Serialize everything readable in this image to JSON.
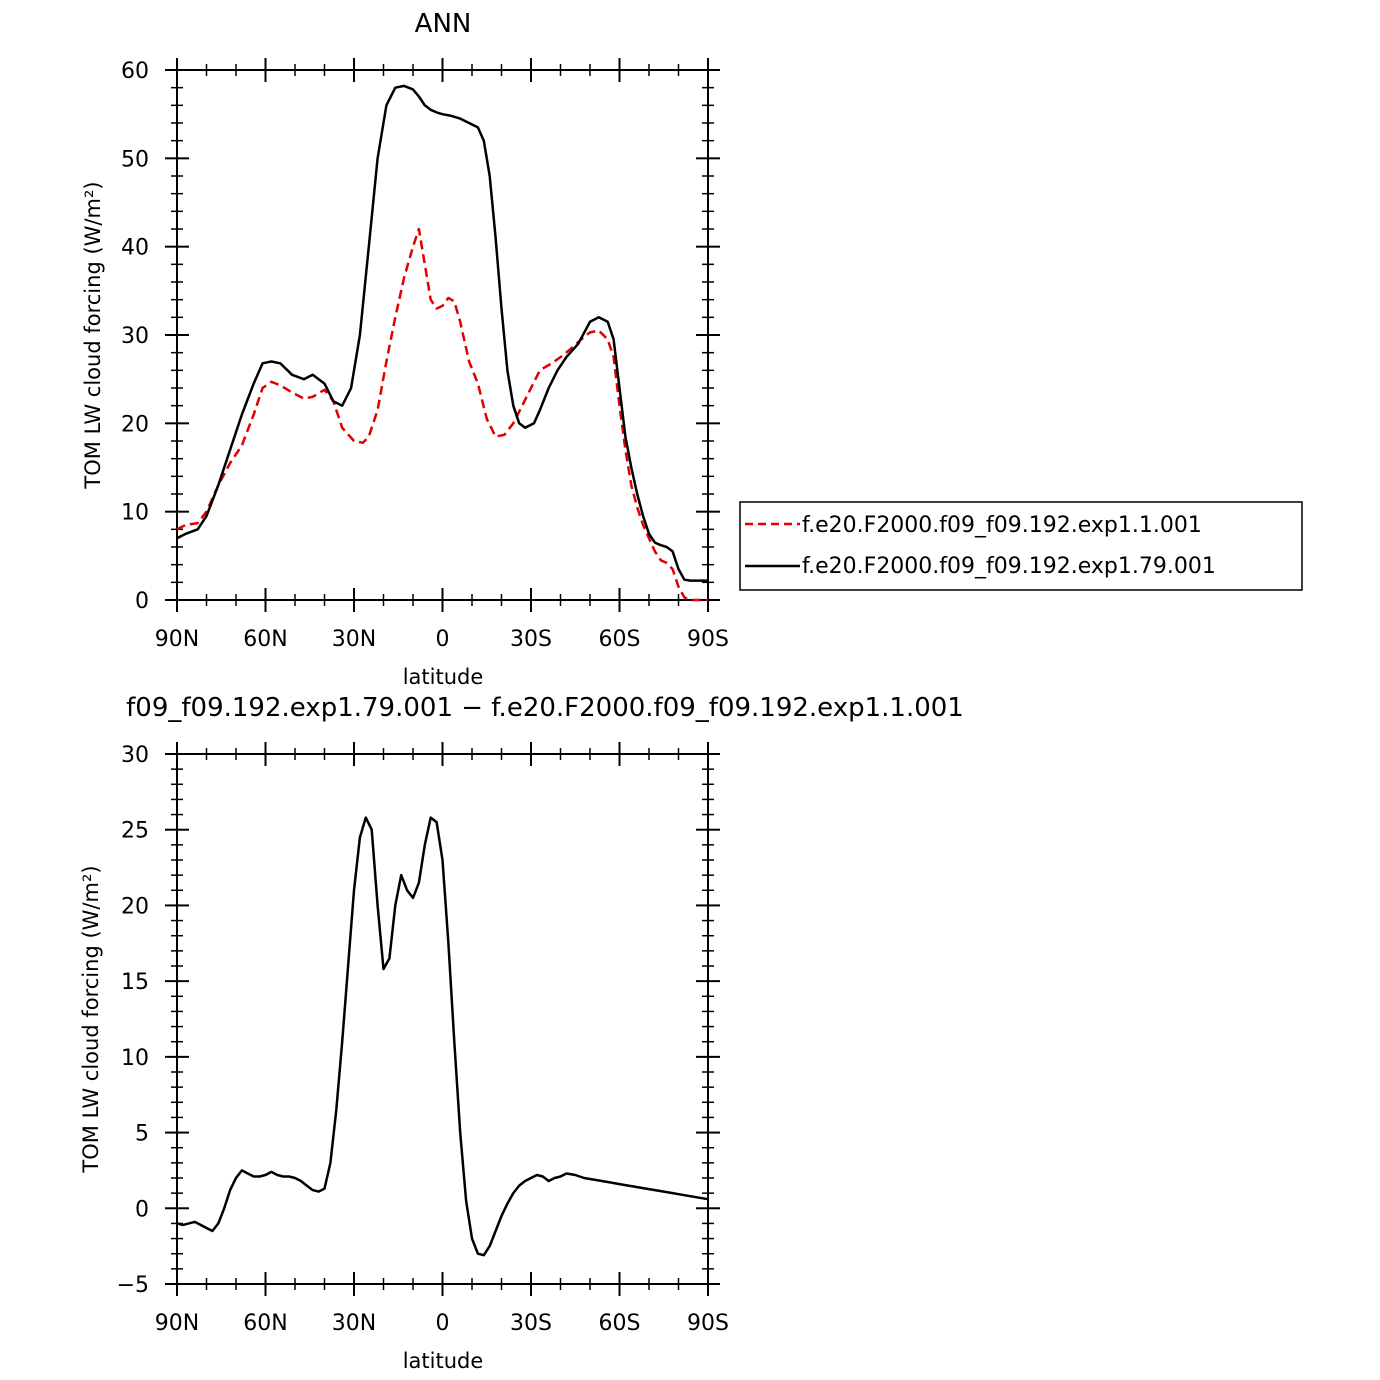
{
  "chart_data": [
    {
      "type": "line",
      "title": "ANN",
      "xlabel": "latitude",
      "ylabel": "TOM LW cloud forcing (W/m²)",
      "xlim": [
        90,
        -90
      ],
      "ylim": [
        0,
        60
      ],
      "x_tick_values": [
        90,
        60,
        30,
        0,
        -30,
        -60,
        -90
      ],
      "x_tick_labels": [
        "90N",
        "60N",
        "30N",
        "0",
        "30S",
        "60S",
        "90S"
      ],
      "y_ticks": [
        0,
        10,
        20,
        30,
        40,
        50,
        60
      ],
      "y_tick_labels": [
        "0",
        "10",
        "20",
        "30",
        "40",
        "50",
        "60"
      ],
      "legend": {
        "placement": "right",
        "entries": [
          {
            "name": "f.e20.F2000.f09_f09.192.exp1.1.001",
            "color": "#e00000",
            "dash": "dashed"
          },
          {
            "name": "f.e20.F2000.f09_f09.192.exp1.79.001",
            "color": "#000000",
            "dash": "solid"
          }
        ]
      },
      "series": [
        {
          "name": "f.e20.F2000.f09_f09.192.exp1.1.001",
          "color": "#e00000",
          "dash": "dashed",
          "x": [
            90,
            87,
            83,
            80,
            76,
            72,
            68,
            64,
            61,
            58,
            55,
            51,
            47,
            44,
            40,
            37,
            34,
            30,
            27,
            25,
            22,
            19,
            16,
            13,
            10,
            8,
            6,
            4,
            2,
            0,
            -2,
            -4,
            -6,
            -9,
            -12,
            -15,
            -18,
            -21,
            -24,
            -27,
            -30,
            -33,
            -37,
            -40,
            -43,
            -47,
            -50,
            -53,
            -56,
            -58,
            -60,
            -62,
            -64,
            -66,
            -68,
            -70,
            -72,
            -74,
            -76,
            -78,
            -80,
            -82,
            -84,
            -86,
            -88,
            -90
          ],
          "y": [
            8.0,
            8.5,
            8.7,
            10.0,
            13.0,
            15.5,
            17.5,
            21.0,
            24.0,
            24.7,
            24.3,
            23.5,
            22.8,
            23.0,
            23.8,
            22.5,
            19.5,
            18.0,
            17.8,
            18.5,
            21.5,
            27.0,
            32.0,
            36.5,
            40.0,
            42.0,
            38.0,
            34.0,
            33.0,
            33.3,
            34.2,
            33.8,
            31.5,
            27.0,
            24.5,
            20.5,
            18.5,
            18.7,
            20.0,
            22.0,
            24.0,
            26.0,
            26.8,
            27.5,
            28.3,
            29.5,
            30.3,
            30.5,
            29.5,
            27.5,
            22.0,
            17.0,
            13.0,
            10.5,
            8.5,
            7.0,
            5.5,
            4.5,
            4.2,
            3.5,
            1.5,
            0.3,
            0.0,
            0.0,
            0.0,
            0.0
          ]
        },
        {
          "name": "f.e20.F2000.f09_f09.192.exp1.79.001",
          "color": "#000000",
          "dash": "solid",
          "x": [
            90,
            87,
            83,
            80,
            76,
            72,
            68,
            64,
            61,
            58,
            55,
            51,
            47,
            44,
            40,
            37,
            34,
            31,
            28,
            25,
            22,
            19,
            16,
            13,
            10,
            8,
            6,
            4,
            2,
            0,
            -3,
            -6,
            -9,
            -12,
            -14,
            -16,
            -18,
            -20,
            -22,
            -24,
            -26,
            -28,
            -31,
            -33,
            -36,
            -39,
            -42,
            -46,
            -50,
            -53,
            -56,
            -58,
            -60,
            -62,
            -64,
            -66,
            -68,
            -70,
            -72,
            -74,
            -76,
            -78,
            -80,
            -82,
            -84,
            -86,
            -88,
            -90
          ],
          "y": [
            7.0,
            7.5,
            8.0,
            9.5,
            13.0,
            17.0,
            21.0,
            24.5,
            26.8,
            27.0,
            26.8,
            25.5,
            25.0,
            25.5,
            24.5,
            22.5,
            22.0,
            24.0,
            30.0,
            40.0,
            50.0,
            56.0,
            58.0,
            58.2,
            57.8,
            57.0,
            56.0,
            55.5,
            55.2,
            55.0,
            54.8,
            54.5,
            54.0,
            53.5,
            52.0,
            48.0,
            41.0,
            33.0,
            26.0,
            22.0,
            20.0,
            19.5,
            20.0,
            21.5,
            24.0,
            26.0,
            27.5,
            29.0,
            31.5,
            32.0,
            31.5,
            29.5,
            24.0,
            18.5,
            15.0,
            12.0,
            9.5,
            7.5,
            6.5,
            6.2,
            6.0,
            5.5,
            3.5,
            2.3,
            2.2,
            2.2,
            2.2,
            2.2
          ]
        }
      ]
    },
    {
      "type": "line",
      "title": "f09_f09.192.exp1.79.001 − f.e20.F2000.f09_f09.192.exp1.1.001",
      "xlabel": "latitude",
      "ylabel": "TOM LW cloud forcing (W/m²)",
      "xlim": [
        90,
        -90
      ],
      "ylim": [
        -5,
        30
      ],
      "x_tick_values": [
        90,
        60,
        30,
        0,
        -30,
        -60,
        -90
      ],
      "x_tick_labels": [
        "90N",
        "60N",
        "30N",
        "0",
        "30S",
        "60S",
        "90S"
      ],
      "y_ticks": [
        -5,
        0,
        5,
        10,
        15,
        20,
        25,
        30
      ],
      "y_tick_labels": [
        "−5",
        "0",
        "5",
        "10",
        "15",
        "20",
        "25",
        "30"
      ],
      "series": [
        {
          "color": "#000000",
          "dash": "solid",
          "x": [
            90,
            88,
            86,
            84,
            82,
            80,
            78,
            76,
            74,
            72,
            70,
            68,
            66,
            64,
            62,
            60,
            58,
            56,
            54,
            52,
            50,
            48,
            46,
            44,
            42,
            40,
            38,
            36,
            34,
            32,
            30,
            28,
            26,
            24,
            22,
            20,
            18,
            16,
            14,
            12,
            10,
            8,
            6,
            4,
            2,
            0,
            -2,
            -4,
            -6,
            -8,
            -10,
            -12,
            -14,
            -16,
            -18,
            -20,
            -22,
            -24,
            -26,
            -28,
            -30,
            -32,
            -34,
            -36,
            -38,
            -40,
            -42,
            -45,
            -48,
            -51,
            -54,
            -57,
            -60,
            -63,
            -66,
            -69,
            -72,
            -75,
            -78,
            -81,
            -84,
            -87,
            -90
          ],
          "y": [
            -1.0,
            -1.1,
            -1.0,
            -0.9,
            -1.1,
            -1.3,
            -1.5,
            -1.0,
            0.0,
            1.2,
            2.0,
            2.5,
            2.3,
            2.1,
            2.1,
            2.2,
            2.4,
            2.2,
            2.1,
            2.1,
            2.0,
            1.8,
            1.5,
            1.2,
            1.1,
            1.3,
            3.0,
            6.5,
            11.0,
            16.0,
            21.0,
            24.5,
            25.8,
            25.0,
            20.0,
            15.8,
            16.5,
            20.0,
            22.0,
            21.0,
            20.5,
            21.5,
            24.0,
            25.8,
            25.5,
            23.0,
            17.5,
            11.0,
            5.0,
            0.5,
            -2.0,
            -3.0,
            -3.1,
            -2.5,
            -1.5,
            -0.5,
            0.3,
            1.0,
            1.5,
            1.8,
            2.0,
            2.2,
            2.1,
            1.8,
            2.0,
            2.1,
            2.3,
            2.2,
            2.0,
            1.9,
            1.8,
            1.7,
            1.6,
            1.5,
            1.4,
            1.3,
            1.2,
            1.1,
            1.0,
            0.9,
            0.8,
            0.7,
            0.6
          ]
        }
      ]
    }
  ]
}
